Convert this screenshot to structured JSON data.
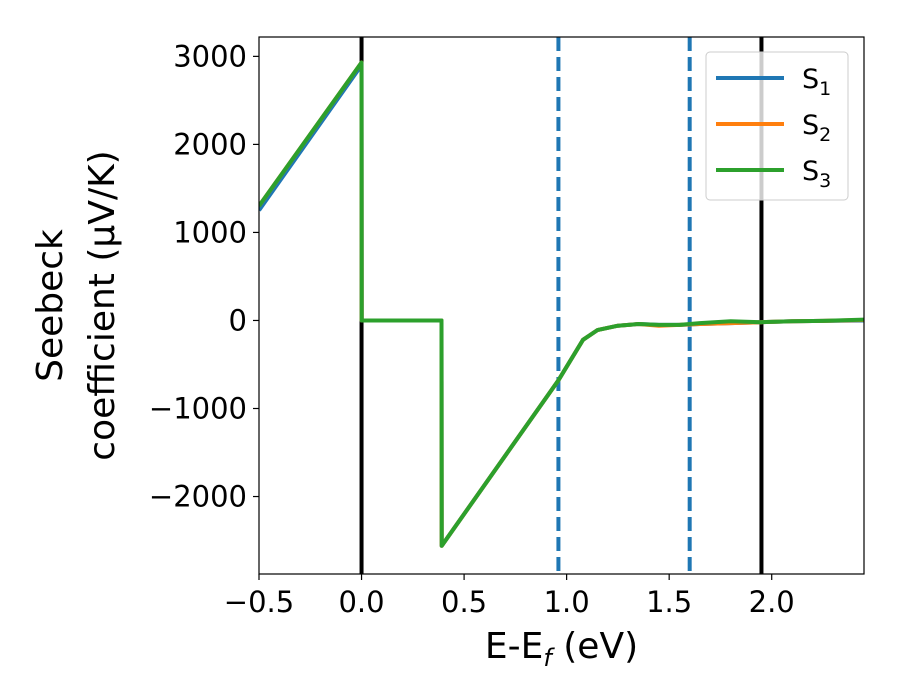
{
  "chart_data": {
    "type": "line",
    "title": "",
    "xlabel": {
      "base": "E-E",
      "sub": "f",
      "rest": " (eV)"
    },
    "ylabel": {
      "line1": "Seebeck",
      "line2": "coefficient  (μV/K)"
    },
    "xlim": [
      -0.5,
      2.45
    ],
    "ylim": [
      -2880,
      3220
    ],
    "xticks": [
      -0.5,
      0.0,
      0.5,
      1.0,
      1.5,
      2.0
    ],
    "xtick_labels": [
      "−0.5",
      "0.0",
      "0.5",
      "1.0",
      "1.5",
      "2.0"
    ],
    "yticks": [
      -2000,
      -1000,
      0,
      1000,
      2000,
      3000
    ],
    "ytick_labels": [
      "−2000",
      "−1000",
      "0",
      "1000",
      "2000",
      "3000"
    ],
    "grid": false,
    "legend_position": "top-right",
    "vlines": [
      {
        "x": 0.0,
        "style": "solid",
        "color": "#000000"
      },
      {
        "x": 1.95,
        "style": "solid",
        "color": "#000000"
      },
      {
        "x": 0.96,
        "style": "dashed",
        "color": "#1f77b4"
      },
      {
        "x": 1.6,
        "style": "dashed",
        "color": "#1f77b4"
      }
    ],
    "series": [
      {
        "name": {
          "base": "S",
          "sub": "1"
        },
        "color": "#1f77b4",
        "x": [
          -0.5,
          0.0,
          0.001,
          0.39,
          0.391,
          0.96,
          1.08,
          1.15,
          1.25,
          1.35,
          1.45,
          1.55,
          1.65,
          1.8,
          1.95,
          2.1,
          2.25,
          2.45
        ],
        "y": [
          1250,
          2900,
          0,
          0,
          -2560,
          -680,
          -220,
          -110,
          -60,
          -40,
          -50,
          -50,
          -40,
          -30,
          -20,
          -10,
          -5,
          0
        ]
      },
      {
        "name": {
          "base": "S",
          "sub": "2"
        },
        "color": "#ff7f0e",
        "x": [
          -0.5,
          0.0,
          0.001,
          0.39,
          0.391,
          0.96,
          1.08,
          1.15,
          1.25,
          1.35,
          1.45,
          1.55,
          1.65,
          1.8,
          1.95,
          2.1,
          2.25,
          2.45
        ],
        "y": [
          1300,
          2930,
          0,
          0,
          -2560,
          -680,
          -220,
          -110,
          -60,
          -40,
          -60,
          -50,
          -40,
          -30,
          -20,
          -10,
          -5,
          5
        ]
      },
      {
        "name": {
          "base": "S",
          "sub": "3"
        },
        "color": "#2ca02c",
        "x": [
          -0.5,
          0.0,
          0.001,
          0.39,
          0.391,
          0.96,
          1.08,
          1.15,
          1.25,
          1.35,
          1.45,
          1.55,
          1.65,
          1.8,
          1.95,
          2.1,
          2.25,
          2.45
        ],
        "y": [
          1300,
          2930,
          0,
          0,
          -2560,
          -680,
          -220,
          -110,
          -60,
          -40,
          -50,
          -50,
          -30,
          -10,
          -20,
          -10,
          -5,
          10
        ]
      }
    ]
  }
}
